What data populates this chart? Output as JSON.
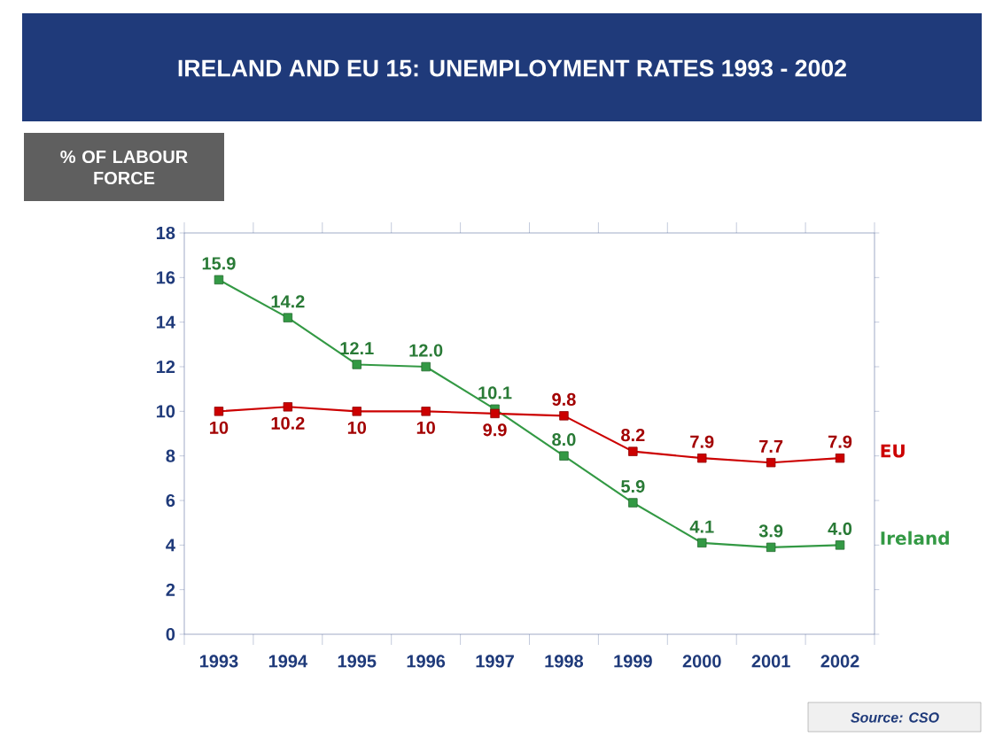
{
  "chart_data": {
    "type": "line",
    "title": "IRELAND AND EU 15: UNEMPLOYMENT RATES 1993 - 2002",
    "ylabel": "% OF LABOUR FORCE",
    "categories": [
      "1993",
      "1994",
      "1995",
      "1996",
      "1997",
      "1998",
      "1999",
      "2000",
      "2001",
      "2002"
    ],
    "series": [
      {
        "name": "Ireland",
        "color": "#339944",
        "values": [
          15.9,
          14.2,
          12.1,
          12.0,
          10.1,
          8.0,
          5.9,
          4.1,
          3.9,
          4.0
        ],
        "value_labels": [
          "15.9",
          "14.2",
          "12.1",
          "12.0",
          "10.1",
          "8.0",
          "5.9",
          "4.1",
          "3.9",
          "4.0"
        ]
      },
      {
        "name": "EU",
        "color": "#cc0000",
        "values": [
          10,
          10.2,
          10,
          10,
          9.9,
          9.8,
          8.2,
          7.9,
          7.7,
          7.9
        ],
        "value_labels": [
          "10",
          "10.2",
          "10",
          "10",
          "9.9",
          "9.8",
          "8.2",
          "7.9",
          "7.7",
          "7.9"
        ]
      }
    ],
    "ylim": [
      0,
      18
    ],
    "yticks": [
      0,
      2,
      4,
      6,
      8,
      10,
      12,
      14,
      16,
      18
    ],
    "marker": "square",
    "annotations": [
      "Source: CSO"
    ]
  }
}
